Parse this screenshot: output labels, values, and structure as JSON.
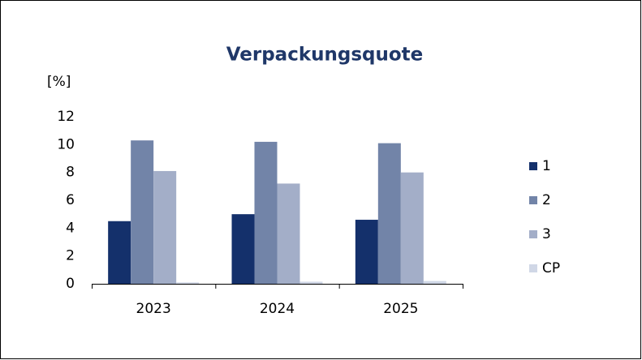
{
  "chart_data": {
    "type": "bar",
    "title": "Verpackungsquote",
    "y_label": "[%]",
    "categories": [
      "2023",
      "2024",
      "2025"
    ],
    "series": [
      {
        "name": "1",
        "color": "#14306b",
        "values": [
          4.5,
          5.0,
          4.6
        ]
      },
      {
        "name": "2",
        "color": "#7284a8",
        "values": [
          10.3,
          10.2,
          10.1
        ]
      },
      {
        "name": "3",
        "color": "#a3aec8",
        "values": [
          8.1,
          7.2,
          8.0
        ]
      },
      {
        "name": "CP",
        "color": "#d0d7e6",
        "values": [
          0.1,
          0.15,
          0.2
        ]
      }
    ],
    "ylim": [
      0,
      12
    ],
    "yticks": [
      0,
      2,
      4,
      6,
      8,
      10,
      12
    ],
    "grid": false,
    "legend": "right"
  }
}
